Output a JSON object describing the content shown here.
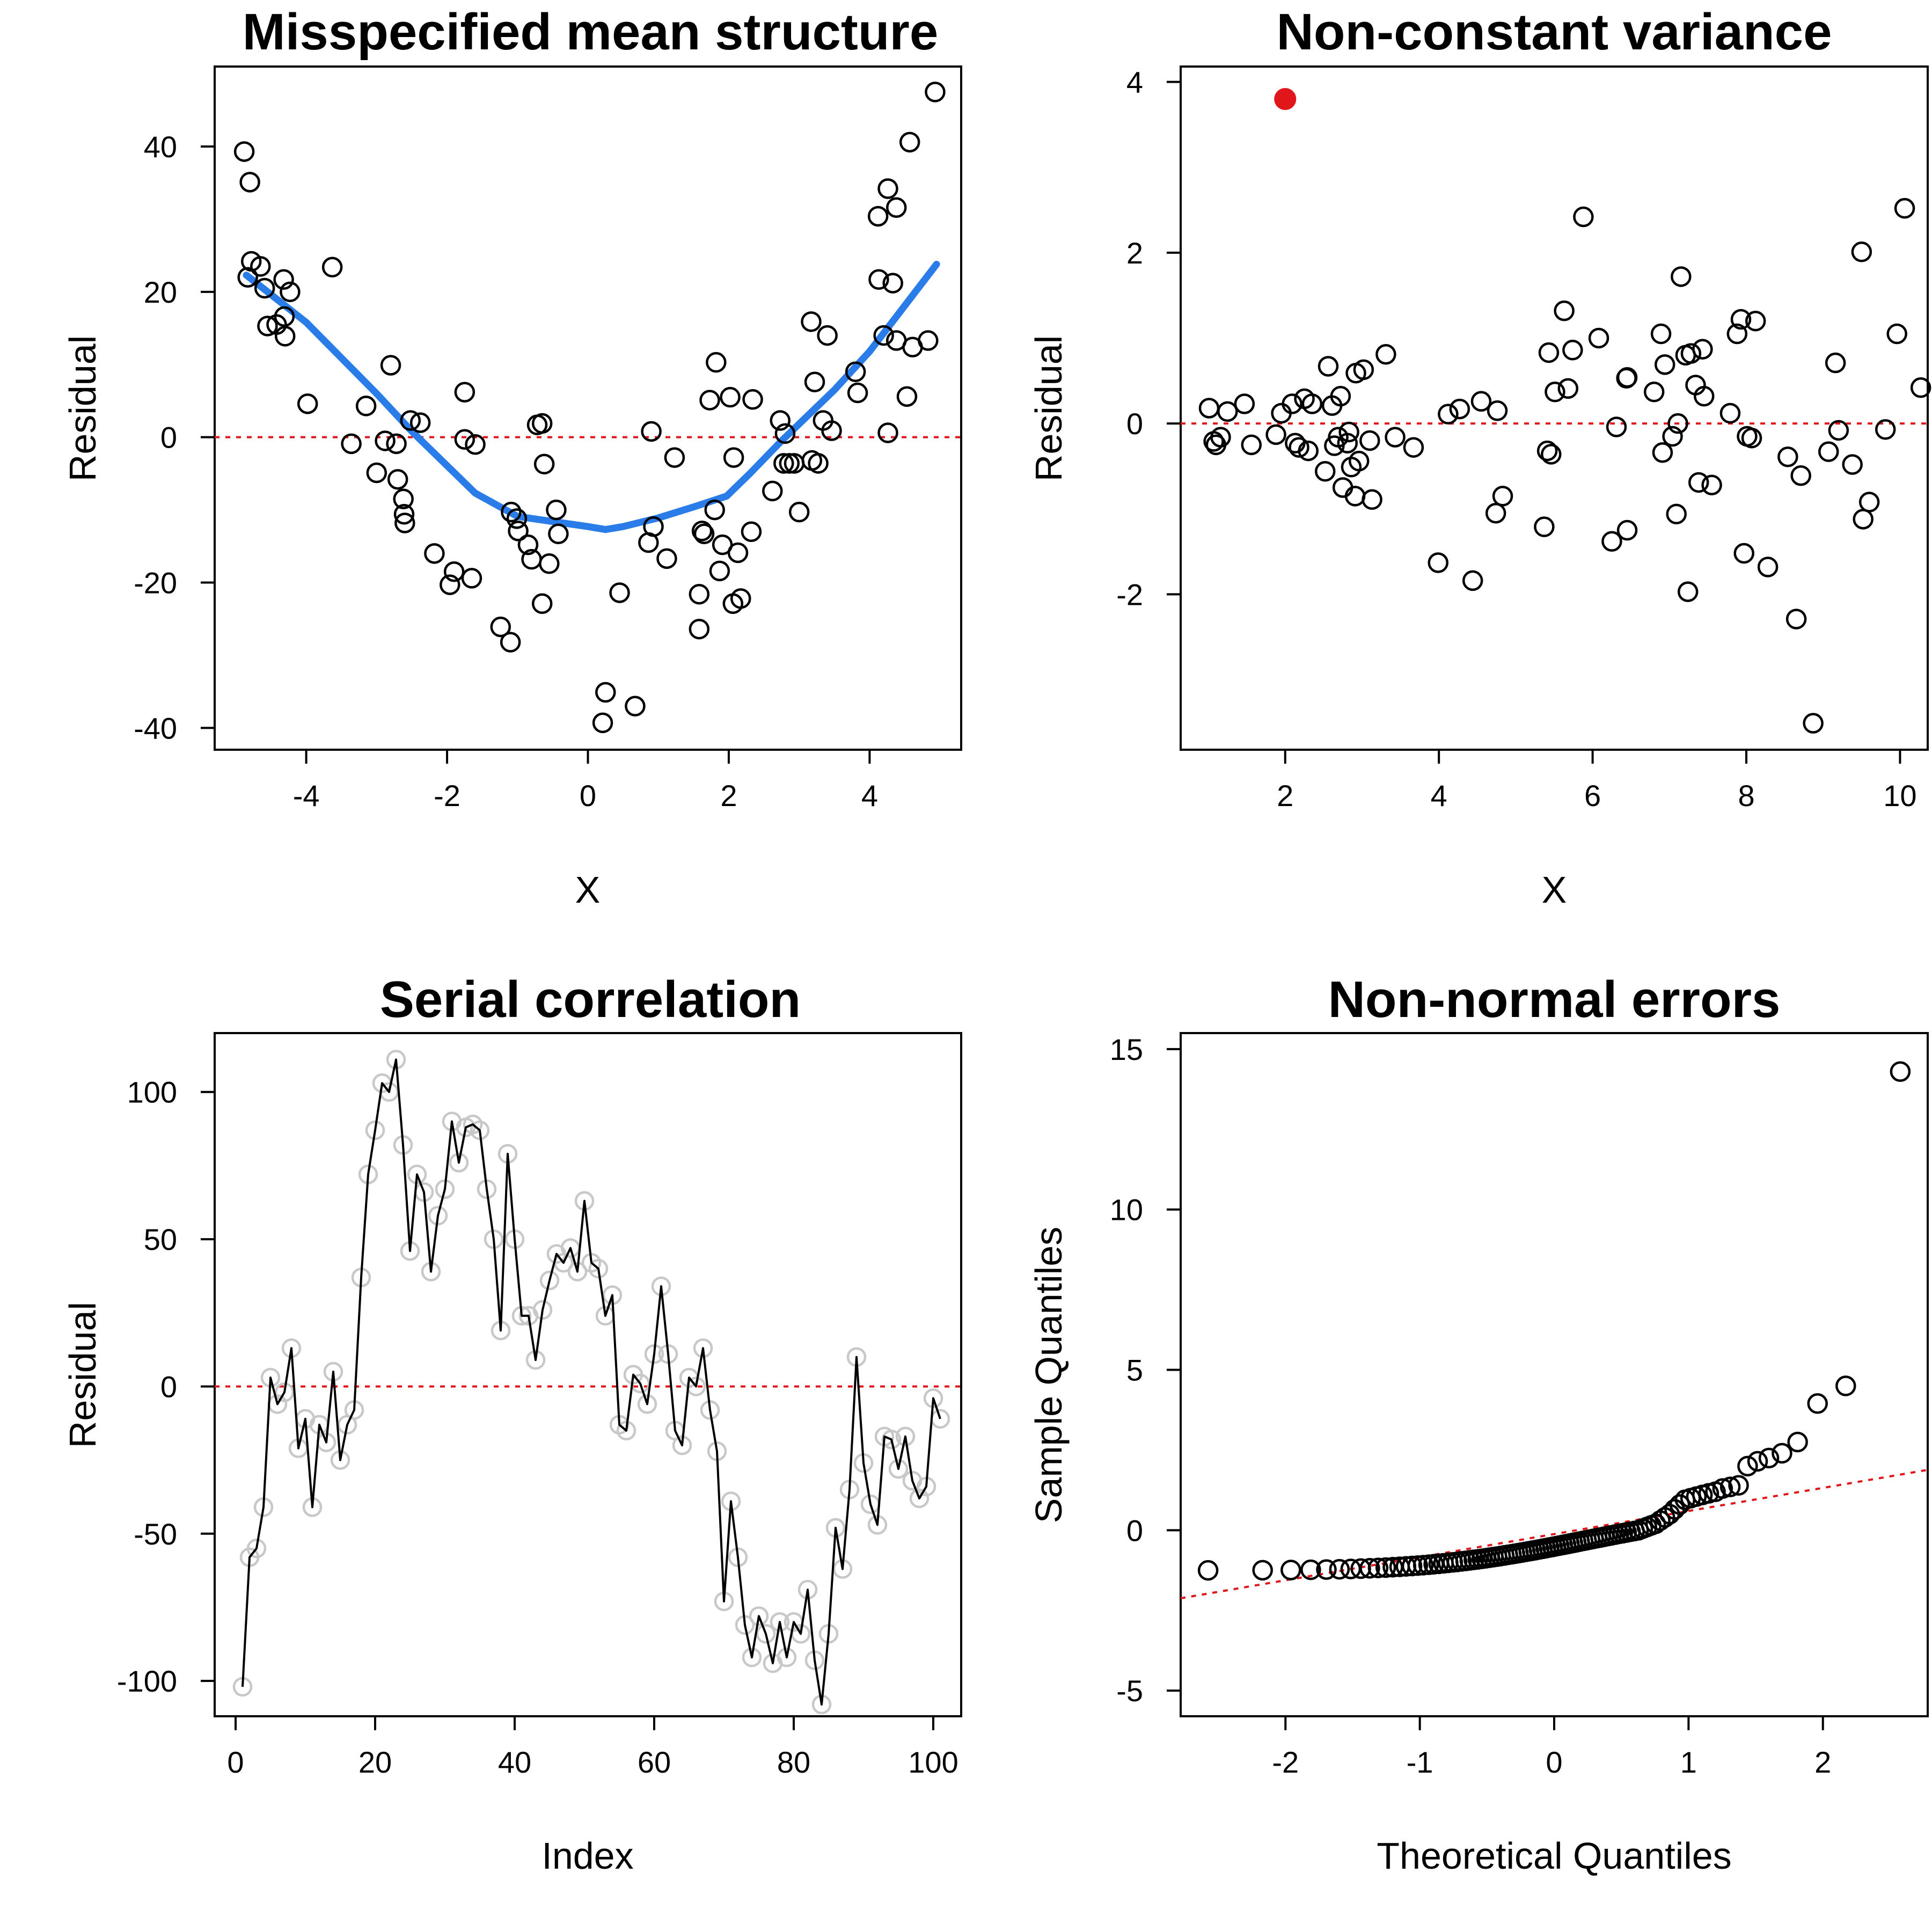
{
  "figure": {
    "background": "#ffffff",
    "accent_colors": {
      "points": "#000000",
      "reference_line": "#e0161b",
      "smooth_curve": "#2a7de8",
      "highlight_point": "#e0161b",
      "serial_points": "#c8c8c8"
    }
  },
  "chart_data": [
    {
      "id": "mean",
      "type": "scatter",
      "title": "Misspecified mean structure",
      "xlabel": "X",
      "ylabel": "Residual",
      "xlim": [
        -5.3,
        5.3
      ],
      "ylim": [
        -43,
        51
      ],
      "xticks": [
        -4,
        -2,
        0,
        2,
        4
      ],
      "yticks": [
        -40,
        -20,
        0,
        20,
        40
      ],
      "reference_line": {
        "y": 0,
        "style": "dotted",
        "color": "#e0161b"
      },
      "points": [
        [
          -4.88,
          39.3
        ],
        [
          -4.8,
          35.1
        ],
        [
          -4.83,
          22.0
        ],
        [
          -4.78,
          24.2
        ],
        [
          -4.65,
          23.5
        ],
        [
          -4.59,
          20.5
        ],
        [
          -4.55,
          15.3
        ],
        [
          -4.42,
          15.5
        ],
        [
          -4.32,
          21.7
        ],
        [
          -4.31,
          16.6
        ],
        [
          -4.3,
          13.9
        ],
        [
          -4.23,
          20.0
        ],
        [
          -3.98,
          4.6
        ],
        [
          -3.63,
          23.4
        ],
        [
          -3.36,
          -0.9
        ],
        [
          -3.15,
          4.3
        ],
        [
          -3.0,
          -4.9
        ],
        [
          -2.88,
          -0.5
        ],
        [
          -2.8,
          9.9
        ],
        [
          -2.72,
          -0.9
        ],
        [
          -2.7,
          -5.8
        ],
        [
          -2.62,
          -8.5
        ],
        [
          -2.61,
          -10.6
        ],
        [
          -2.6,
          -11.8
        ],
        [
          -2.52,
          2.3
        ],
        [
          -2.38,
          2.0
        ],
        [
          -2.18,
          -16.0
        ],
        [
          -1.96,
          -20.3
        ],
        [
          -1.9,
          -18.5
        ],
        [
          -1.75,
          6.2
        ],
        [
          -1.75,
          -0.3
        ],
        [
          -1.65,
          -19.4
        ],
        [
          -1.6,
          -1.0
        ],
        [
          -1.24,
          -26.1
        ],
        [
          -1.1,
          -28.2
        ],
        [
          -1.09,
          -10.3
        ],
        [
          -1.01,
          -11.2
        ],
        [
          -0.99,
          -12.9
        ],
        [
          -0.85,
          -14.8
        ],
        [
          -0.8,
          -16.8
        ],
        [
          -0.72,
          1.7
        ],
        [
          -0.65,
          1.9
        ],
        [
          -0.65,
          -22.9
        ],
        [
          -0.62,
          -3.7
        ],
        [
          -0.55,
          -17.4
        ],
        [
          -0.45,
          -10.0
        ],
        [
          -0.42,
          -13.3
        ],
        [
          0.21,
          -39.3
        ],
        [
          0.25,
          -35.1
        ],
        [
          0.45,
          -21.4
        ],
        [
          0.67,
          -37.0
        ],
        [
          0.86,
          -14.5
        ],
        [
          0.9,
          0.8
        ],
        [
          0.93,
          -12.3
        ],
        [
          1.12,
          -16.7
        ],
        [
          1.23,
          -2.8
        ],
        [
          1.58,
          -21.6
        ],
        [
          1.58,
          -26.4
        ],
        [
          1.62,
          -12.9
        ],
        [
          1.65,
          -13.3
        ],
        [
          1.73,
          5.1
        ],
        [
          1.8,
          -10.0
        ],
        [
          1.82,
          10.3
        ],
        [
          1.87,
          -18.4
        ],
        [
          1.91,
          -14.8
        ],
        [
          2.02,
          5.5
        ],
        [
          2.06,
          -22.9
        ],
        [
          2.07,
          -2.8
        ],
        [
          2.13,
          -15.9
        ],
        [
          2.17,
          -22.2
        ],
        [
          2.32,
          -13.0
        ],
        [
          2.34,
          5.2
        ],
        [
          2.62,
          -7.4
        ],
        [
          2.73,
          2.3
        ],
        [
          2.78,
          -3.6
        ],
        [
          2.8,
          0.5
        ],
        [
          2.86,
          -3.6
        ],
        [
          2.93,
          -3.6
        ],
        [
          3.0,
          -10.3
        ],
        [
          3.17,
          15.9
        ],
        [
          3.18,
          -3.2
        ],
        [
          3.22,
          7.6
        ],
        [
          3.27,
          -3.6
        ],
        [
          3.34,
          2.3
        ],
        [
          3.4,
          14.0
        ],
        [
          3.46,
          0.9
        ],
        [
          3.8,
          9.0
        ],
        [
          3.83,
          6.1
        ],
        [
          4.12,
          30.4
        ],
        [
          4.13,
          21.7
        ],
        [
          4.2,
          14.0
        ],
        [
          4.26,
          34.2
        ],
        [
          4.26,
          0.6
        ],
        [
          4.33,
          21.2
        ],
        [
          4.38,
          13.3
        ],
        [
          4.38,
          31.6
        ],
        [
          4.53,
          5.6
        ],
        [
          4.57,
          40.6
        ],
        [
          4.61,
          12.4
        ],
        [
          4.83,
          13.3
        ],
        [
          4.93,
          47.5
        ]
      ],
      "smooth_curve": [
        [
          -4.85,
          22.3
        ],
        [
          -4.0,
          15.8
        ],
        [
          -3.0,
          6.0
        ],
        [
          -2.5,
          0.8
        ],
        [
          -1.6,
          -7.7
        ],
        [
          -1.0,
          -10.9
        ],
        [
          -0.5,
          -11.6
        ],
        [
          0.0,
          -12.3
        ],
        [
          0.25,
          -12.7
        ],
        [
          0.5,
          -12.3
        ],
        [
          1.0,
          -11.1
        ],
        [
          1.5,
          -9.6
        ],
        [
          1.97,
          -8.1
        ],
        [
          2.3,
          -5.0
        ],
        [
          2.75,
          -0.5
        ],
        [
          3.5,
          6.5
        ],
        [
          4.0,
          11.8
        ],
        [
          4.95,
          23.8
        ]
      ]
    },
    {
      "id": "variance",
      "type": "scatter",
      "title": "Non-constant variance",
      "xlabel": "X",
      "ylabel": "Residual",
      "xlim": [
        0.64,
        10.36
      ],
      "ylim": [
        -3.82,
        4.18
      ],
      "xticks": [
        2,
        4,
        6,
        8,
        10
      ],
      "yticks": [
        -2,
        0,
        2,
        4
      ],
      "reference_line": {
        "y": 0,
        "style": "dotted",
        "color": "#e0161b"
      },
      "highlight_point": [
        2.0,
        3.8
      ],
      "points": [
        [
          1.01,
          0.18
        ],
        [
          1.07,
          -0.21
        ],
        [
          1.1,
          -0.25
        ],
        [
          1.16,
          -0.16
        ],
        [
          1.25,
          0.14
        ],
        [
          1.47,
          0.23
        ],
        [
          1.56,
          -0.25
        ],
        [
          1.88,
          -0.13
        ],
        [
          1.95,
          0.12
        ],
        [
          2.09,
          0.23
        ],
        [
          2.13,
          -0.23
        ],
        [
          2.18,
          -0.28
        ],
        [
          2.25,
          0.29
        ],
        [
          2.3,
          -0.32
        ],
        [
          2.35,
          0.23
        ],
        [
          2.52,
          -0.56
        ],
        [
          2.56,
          0.67
        ],
        [
          2.61,
          0.21
        ],
        [
          2.64,
          -0.26
        ],
        [
          2.69,
          -0.16
        ],
        [
          2.72,
          0.32
        ],
        [
          2.75,
          -0.75
        ],
        [
          2.81,
          -0.23
        ],
        [
          2.83,
          -0.1
        ],
        [
          2.86,
          -0.51
        ],
        [
          2.91,
          -0.85
        ],
        [
          2.92,
          0.59
        ],
        [
          2.96,
          -0.44
        ],
        [
          3.02,
          0.63
        ],
        [
          3.1,
          -0.2
        ],
        [
          3.13,
          -0.89
        ],
        [
          3.31,
          0.81
        ],
        [
          3.43,
          -0.16
        ],
        [
          3.67,
          -0.28
        ],
        [
          3.99,
          -1.63
        ],
        [
          4.12,
          0.11
        ],
        [
          4.27,
          0.17
        ],
        [
          4.44,
          -1.84
        ],
        [
          4.55,
          0.26
        ],
        [
          4.74,
          -1.05
        ],
        [
          4.76,
          0.15
        ],
        [
          4.83,
          -0.85
        ],
        [
          5.37,
          -1.21
        ],
        [
          5.41,
          -0.32
        ],
        [
          5.43,
          0.83
        ],
        [
          5.46,
          -0.36
        ],
        [
          5.51,
          0.37
        ],
        [
          5.63,
          1.32
        ],
        [
          5.68,
          0.41
        ],
        [
          5.74,
          0.86
        ],
        [
          5.88,
          2.42
        ],
        [
          6.08,
          1.0
        ],
        [
          6.25,
          -1.38
        ],
        [
          6.31,
          -0.04
        ],
        [
          6.44,
          0.53
        ],
        [
          6.45,
          0.54
        ],
        [
          6.45,
          -1.25
        ],
        [
          6.8,
          0.37
        ],
        [
          6.89,
          1.05
        ],
        [
          6.91,
          -0.34
        ],
        [
          6.94,
          0.69
        ],
        [
          7.04,
          -0.15
        ],
        [
          7.09,
          -1.06
        ],
        [
          7.11,
          0.0
        ],
        [
          7.15,
          1.72
        ],
        [
          7.21,
          0.8
        ],
        [
          7.24,
          -1.97
        ],
        [
          7.28,
          0.82
        ],
        [
          7.34,
          0.45
        ],
        [
          7.38,
          -0.69
        ],
        [
          7.43,
          0.87
        ],
        [
          7.45,
          0.32
        ],
        [
          7.55,
          -0.72
        ],
        [
          7.79,
          0.12
        ],
        [
          7.88,
          1.05
        ],
        [
          7.93,
          1.22
        ],
        [
          7.97,
          -1.52
        ],
        [
          8.01,
          -0.15
        ],
        [
          8.07,
          -0.17
        ],
        [
          8.12,
          1.2
        ],
        [
          8.28,
          -1.68
        ],
        [
          8.54,
          -0.39
        ],
        [
          8.65,
          -2.29
        ],
        [
          8.71,
          -0.61
        ],
        [
          8.87,
          -3.51
        ],
        [
          9.07,
          -0.33
        ],
        [
          9.16,
          0.71
        ],
        [
          9.2,
          -0.08
        ],
        [
          9.38,
          -0.48
        ],
        [
          9.5,
          2.01
        ],
        [
          9.52,
          -1.12
        ],
        [
          9.6,
          -0.92
        ],
        [
          9.81,
          -0.07
        ],
        [
          9.96,
          1.05
        ],
        [
          10.06,
          2.52
        ],
        [
          10.27,
          0.42
        ]
      ]
    },
    {
      "id": "serial",
      "type": "line",
      "title": "Serial correlation",
      "xlabel": "Index",
      "ylabel": "Residual",
      "xlim": [
        -3,
        104
      ],
      "ylim": [
        -112,
        120
      ],
      "xticks": [
        0,
        20,
        40,
        60,
        80,
        100
      ],
      "yticks": [
        -100,
        -50,
        0,
        50,
        100
      ],
      "reference_line": {
        "y": 0,
        "style": "dotted",
        "color": "#e0161b"
      },
      "y": [
        -102,
        -58,
        -55,
        -41,
        3,
        -6,
        -2,
        13,
        -21,
        -11,
        -41,
        -13,
        -19,
        5,
        -25,
        -13,
        -8,
        37,
        72,
        87,
        103,
        100,
        111,
        82,
        46,
        72,
        66,
        39,
        58,
        67,
        90,
        76,
        88,
        89,
        87,
        67,
        50,
        19,
        79,
        50,
        24,
        24,
        9,
        26,
        36,
        45,
        42,
        47,
        39,
        63,
        42,
        40,
        24,
        31,
        -13,
        -15,
        4,
        1,
        -6,
        11,
        34,
        11,
        -15,
        -20,
        3,
        0,
        13,
        -8,
        -22,
        -73,
        -39,
        -58,
        -81,
        -92,
        -78,
        -84,
        -94,
        -80,
        -92,
        -80,
        -84,
        -69,
        -93,
        -108,
        -84,
        -48,
        -62,
        -35,
        10,
        -26,
        -40,
        -47,
        -17,
        -18,
        -28,
        -17,
        -32,
        -38,
        -34,
        -4,
        -11
      ]
    },
    {
      "id": "qq",
      "type": "scatter",
      "title": "Non-normal errors",
      "xlabel": "Theoretical Quantiles",
      "ylabel": "Sample Quantiles",
      "xlim": [
        -2.78,
        2.78
      ],
      "ylim": [
        -5.8,
        15.5
      ],
      "xticks": [
        -2,
        -1,
        0,
        1,
        2
      ],
      "yticks": [
        -5,
        0,
        5,
        10,
        15
      ],
      "reference_line": {
        "intercept": -0.12,
        "slope": 0.72,
        "style": "dotted",
        "color": "#e0161b"
      },
      "sample_tail_values": [
        0.05,
        0.1,
        0.15,
        0.2,
        0.3,
        0.4,
        0.5,
        0.65,
        0.8,
        0.95,
        1.0,
        1.05,
        1.1,
        1.15,
        1.2,
        1.3,
        1.35,
        1.4,
        2.0,
        2.15,
        2.25,
        2.4,
        2.75,
        3.95,
        4.5,
        14.3
      ],
      "n": 100
    }
  ]
}
